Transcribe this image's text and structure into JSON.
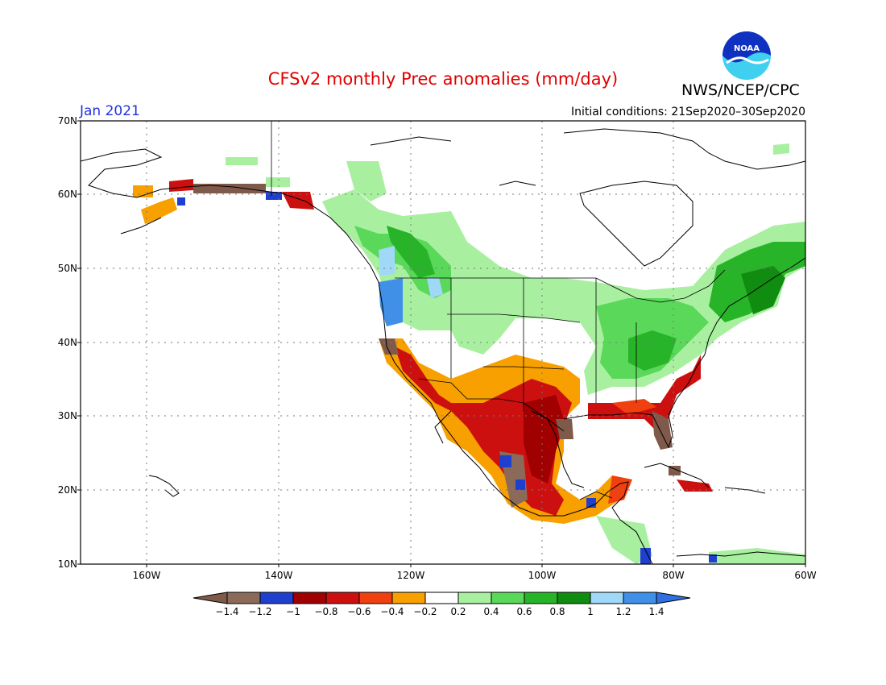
{
  "title": "CFSv2 monthly Prec anomalies (mm/day)",
  "agency": "NWS/NCEP/CPC",
  "logo_text": "NOAA",
  "valid_month": "Jan 2021",
  "initial_conditions": "Initial conditions: 21Sep2020–30Sep2020",
  "lat_labels": [
    "70N",
    "60N",
    "50N",
    "40N",
    "30N",
    "20N",
    "10N"
  ],
  "lon_labels": [
    "160W",
    "140W",
    "120W",
    "100W",
    "80W",
    "60W"
  ],
  "colorbar": {
    "labels": [
      "−1.4",
      "−1.2",
      "−1",
      "−0.8",
      "−0.6",
      "−0.4",
      "−0.2",
      "0.2",
      "0.4",
      "0.6",
      "0.8",
      "1",
      "1.2",
      "1.4"
    ],
    "colors": [
      "#7f5a4a",
      "#8c6a5a",
      "#1f3fcf",
      "#a00000",
      "#cc1010",
      "#f04010",
      "#f7a000",
      "#ffffff",
      "#a8f0a0",
      "#5ad85a",
      "#28b428",
      "#108c10",
      "#a0d8f8",
      "#4090e8",
      "#2f6fe0"
    ]
  },
  "colors": {
    "title": "#e00000",
    "month": "#2233dd",
    "dry_strong": "#a00000",
    "dry": "#f7a000",
    "wet": "#5ad85a",
    "wet_strong": "#108c10"
  }
}
